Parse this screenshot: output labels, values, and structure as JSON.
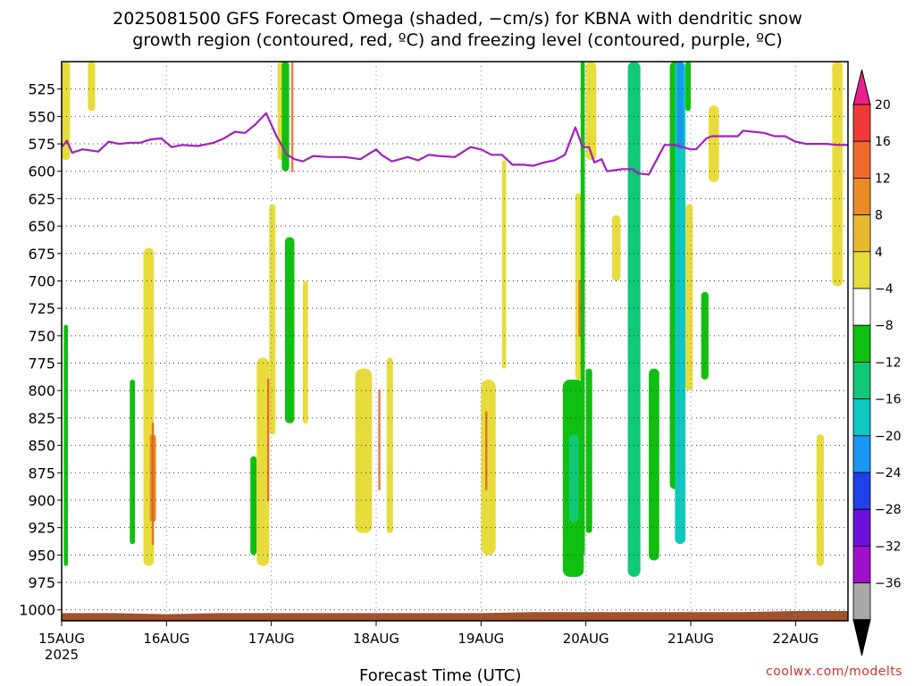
{
  "header": {
    "title_line1": "2025081500 GFS Forecast Omega (shaded, −cm/s) for KBNA with dendritic snow",
    "title_line2": "growth region (contoured, red, ºC) and freezing level (contoured, purple, ºC)"
  },
  "footer": {
    "xlabel": "Forecast Time (UTC)",
    "credit": "coolwx.com/modelts",
    "year": "2025"
  },
  "chart_data": {
    "type": "heatmap",
    "title": "2025081500 GFS Forecast Omega (shaded, −cm/s) for KBNA with dendritic snow growth region (contoured, red, ºC) and freezing level (contoured, purple, ºC)",
    "xlabel": "Forecast Time (UTC)",
    "ylabel": "",
    "x_range_days": [
      0,
      7.5
    ],
    "x_ticks": [
      "15AUG",
      "16AUG",
      "17AUG",
      "18AUG",
      "19AUG",
      "20AUG",
      "21AUG",
      "22AUG"
    ],
    "y_range_hpa": [
      1010,
      500
    ],
    "y_ticks": [
      525,
      550,
      575,
      600,
      625,
      650,
      675,
      700,
      725,
      750,
      775,
      800,
      825,
      850,
      875,
      900,
      925,
      950,
      975,
      1000
    ],
    "grid": true,
    "colorbar": {
      "labels": [
        "20",
        "16",
        "12",
        "8",
        "4",
        "−4",
        "−8",
        "−12",
        "−16",
        "−20",
        "−24",
        "−28",
        "−32",
        "−36"
      ],
      "colors": [
        "#e8208c",
        "#f03a3a",
        "#f06a30",
        "#e88c28",
        "#e8b830",
        "#e8dc3c",
        "#ffffff",
        "#10c010",
        "#10c878",
        "#10c8c0",
        "#1898f0",
        "#2040e8",
        "#6a10d8",
        "#a010c8",
        "#a8a8a8",
        "#000000"
      ]
    },
    "freezing_level_color": "#a020c0",
    "ground_color": "#a0522d",
    "freezing_level": {
      "day": [
        0,
        0.05,
        0.1,
        0.2,
        0.35,
        0.45,
        0.55,
        0.65,
        0.75,
        0.85,
        0.95,
        1.0,
        1.05,
        1.15,
        1.3,
        1.45,
        1.55,
        1.65,
        1.75,
        1.85,
        1.95,
        2.05,
        2.15,
        2.22,
        2.3,
        2.4,
        2.55,
        2.7,
        2.85,
        3.0,
        3.05,
        3.15,
        3.3,
        3.4,
        3.5,
        3.6,
        3.75,
        3.9,
        4.0,
        4.1,
        4.2,
        4.3,
        4.4,
        4.5,
        4.6,
        4.7,
        4.8,
        4.9,
        4.97,
        5.0,
        5.03,
        5.08,
        5.15,
        5.2,
        5.28,
        5.35,
        5.45,
        5.5,
        5.6,
        5.75,
        5.85,
        6.0,
        6.05,
        6.15,
        6.2,
        6.35,
        6.45,
        6.5,
        6.7,
        6.8,
        6.9,
        7.0,
        7.1,
        7.2,
        7.3,
        7.4,
        7.5
      ],
      "pressure_hpa": [
        578,
        572,
        583,
        580,
        582,
        573,
        575,
        574,
        574,
        571,
        570,
        574,
        578,
        576,
        577,
        574,
        570,
        564,
        565,
        557,
        547,
        568,
        585,
        589,
        591,
        586,
        587,
        587,
        589,
        580,
        585,
        591,
        587,
        590,
        585,
        586,
        587,
        578,
        580,
        585,
        585,
        594,
        594,
        595,
        592,
        590,
        585,
        560,
        578,
        578,
        578,
        592,
        589,
        600,
        599,
        598,
        598,
        602,
        603,
        576,
        576,
        580,
        580,
        570,
        568,
        568,
        568,
        563,
        565,
        568,
        568,
        573,
        575,
        575,
        575,
        576,
        576
      ]
    },
    "omega_regions": [
      {
        "t0": 0.0,
        "t1": 0.08,
        "p_top": 500,
        "p_bot": 590,
        "value_cm_s": 5
      },
      {
        "t0": 0.02,
        "t1": 0.06,
        "p_top": 740,
        "p_bot": 960,
        "value_cm_s": -6
      },
      {
        "t0": 0.25,
        "t1": 0.32,
        "p_top": 500,
        "p_bot": 545,
        "value_cm_s": 5
      },
      {
        "t0": 0.65,
        "t1": 0.7,
        "p_top": 790,
        "p_bot": 940,
        "value_cm_s": -6
      },
      {
        "t0": 0.78,
        "t1": 0.88,
        "p_top": 670,
        "p_bot": 960,
        "value_cm_s": 6
      },
      {
        "t0": 0.84,
        "t1": 0.9,
        "p_top": 840,
        "p_bot": 920,
        "value_cm_s": 9
      },
      {
        "t0": 1.8,
        "t1": 1.86,
        "p_top": 860,
        "p_bot": 950,
        "value_cm_s": -6
      },
      {
        "t0": 1.86,
        "t1": 1.98,
        "p_top": 770,
        "p_bot": 960,
        "value_cm_s": 6
      },
      {
        "t0": 1.98,
        "t1": 2.04,
        "p_top": 630,
        "p_bot": 840,
        "value_cm_s": 5
      },
      {
        "t0": 2.06,
        "t1": 2.13,
        "p_top": 500,
        "p_bot": 590,
        "value_cm_s": 5
      },
      {
        "t0": 2.1,
        "t1": 2.17,
        "p_top": 500,
        "p_bot": 600,
        "value_cm_s": -6
      },
      {
        "t0": 2.13,
        "t1": 2.22,
        "p_top": 660,
        "p_bot": 830,
        "value_cm_s": -6
      },
      {
        "t0": 2.3,
        "t1": 2.35,
        "p_top": 700,
        "p_bot": 830,
        "value_cm_s": 5
      },
      {
        "t0": 2.8,
        "t1": 2.96,
        "p_top": 780,
        "p_bot": 930,
        "value_cm_s": 6
      },
      {
        "t0": 3.1,
        "t1": 3.16,
        "p_top": 770,
        "p_bot": 930,
        "value_cm_s": 6
      },
      {
        "t0": 4.0,
        "t1": 4.14,
        "p_top": 790,
        "p_bot": 950,
        "value_cm_s": 6
      },
      {
        "t0": 4.2,
        "t1": 4.24,
        "p_top": 590,
        "p_bot": 780,
        "value_cm_s": 5
      },
      {
        "t0": 4.78,
        "t1": 4.98,
        "p_top": 790,
        "p_bot": 970,
        "value_cm_s": -6
      },
      {
        "t0": 4.84,
        "t1": 4.93,
        "p_top": 840,
        "p_bot": 920,
        "value_cm_s": -10
      },
      {
        "t0": 4.9,
        "t1": 4.96,
        "p_top": 620,
        "p_bot": 790,
        "value_cm_s": 5
      },
      {
        "t0": 4.95,
        "t1": 4.99,
        "p_top": 500,
        "p_bot": 950,
        "value_cm_s": -5
      },
      {
        "t0": 5.0,
        "t1": 5.1,
        "p_top": 500,
        "p_bot": 590,
        "value_cm_s": 5
      },
      {
        "t0": 5.0,
        "t1": 5.06,
        "p_top": 780,
        "p_bot": 930,
        "value_cm_s": -6
      },
      {
        "t0": 5.25,
        "t1": 5.33,
        "p_top": 640,
        "p_bot": 700,
        "value_cm_s": 5
      },
      {
        "t0": 5.4,
        "t1": 5.52,
        "p_top": 500,
        "p_bot": 970,
        "value_cm_s": -10
      },
      {
        "t0": 5.6,
        "t1": 5.7,
        "p_top": 780,
        "p_bot": 955,
        "value_cm_s": -6
      },
      {
        "t0": 5.8,
        "t1": 5.9,
        "p_top": 500,
        "p_bot": 890,
        "value_cm_s": -6
      },
      {
        "t0": 5.85,
        "t1": 5.95,
        "p_top": 500,
        "p_bot": 940,
        "value_cm_s": -13
      },
      {
        "t0": 5.87,
        "t1": 5.93,
        "p_top": 500,
        "p_bot": 580,
        "value_cm_s": -17
      },
      {
        "t0": 5.95,
        "t1": 6.0,
        "p_top": 500,
        "p_bot": 545,
        "value_cm_s": -6
      },
      {
        "t0": 5.95,
        "t1": 6.02,
        "p_top": 630,
        "p_bot": 800,
        "value_cm_s": 5
      },
      {
        "t0": 6.1,
        "t1": 6.17,
        "p_top": 710,
        "p_bot": 790,
        "value_cm_s": -6
      },
      {
        "t0": 6.17,
        "t1": 6.27,
        "p_top": 540,
        "p_bot": 610,
        "value_cm_s": 5
      },
      {
        "t0": 7.2,
        "t1": 7.27,
        "p_top": 840,
        "p_bot": 960,
        "value_cm_s": 5
      },
      {
        "t0": 7.35,
        "t1": 7.45,
        "p_top": 500,
        "p_bot": 705,
        "value_cm_s": 5
      }
    ],
    "snow_growth_contours": [
      {
        "t": 0.87,
        "p_top": 830,
        "p_bot": 940
      },
      {
        "t": 1.97,
        "p_top": 790,
        "p_bot": 900
      },
      {
        "t": 2.2,
        "p_top": 500,
        "p_bot": 600
      },
      {
        "t": 3.03,
        "p_top": 800,
        "p_bot": 890
      },
      {
        "t": 4.05,
        "p_top": 820,
        "p_bot": 890
      },
      {
        "t": 4.94,
        "p_top": 700,
        "p_bot": 750
      }
    ],
    "ground_surface_hpa": [
      1003,
      1003,
      1004,
      1003,
      1003,
      1003,
      1003,
      1003,
      1003,
      1002,
      1002,
      1002,
      1002,
      1002,
      1001,
      1001
    ]
  }
}
